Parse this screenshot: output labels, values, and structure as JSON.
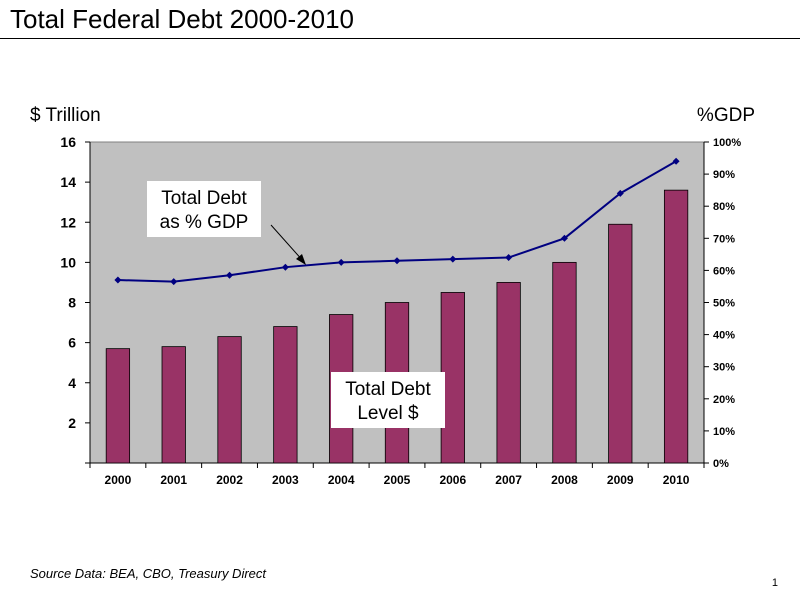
{
  "slide": {
    "title": "Total Federal Debt 2000-2010",
    "left_unit": "$ Trillion",
    "right_unit": "%GDP",
    "source": "Source Data: BEA, CBO, Treasury Direct",
    "page_number": "1"
  },
  "chart_data": {
    "type": "bar",
    "categories": [
      "2000",
      "2001",
      "2002",
      "2003",
      "2004",
      "2005",
      "2006",
      "2007",
      "2008",
      "2009",
      "2010"
    ],
    "series": [
      {
        "name": "Total Debt Level $",
        "type": "bar",
        "axis": "left",
        "values": [
          5.7,
          5.8,
          6.3,
          6.8,
          7.4,
          8.0,
          8.5,
          9.0,
          10.0,
          11.9,
          13.6
        ]
      },
      {
        "name": "Total Debt as % GDP",
        "type": "line",
        "axis": "right",
        "values": [
          57,
          56.5,
          58.5,
          61,
          62.5,
          63,
          63.5,
          64,
          70,
          84,
          94
        ]
      }
    ],
    "left_axis": {
      "ylim": [
        0,
        16
      ],
      "ticks": [
        "2",
        "4",
        "6",
        "8",
        "10",
        "12",
        "14",
        "16"
      ]
    },
    "right_axis": {
      "ylim": [
        0,
        100
      ],
      "ticks": [
        "0%",
        "10%",
        "20%",
        "30%",
        "40%",
        "50%",
        "60%",
        "70%",
        "80%",
        "90%",
        "100%"
      ]
    },
    "annotations": [
      {
        "lines": [
          "Total Debt",
          "as % GDP"
        ]
      },
      {
        "lines": [
          "Total Debt",
          "Level $"
        ]
      }
    ],
    "colors": {
      "bar": "#993366",
      "line": "#000080",
      "plot_bg": "#c0c0c0"
    },
    "grid": false
  }
}
